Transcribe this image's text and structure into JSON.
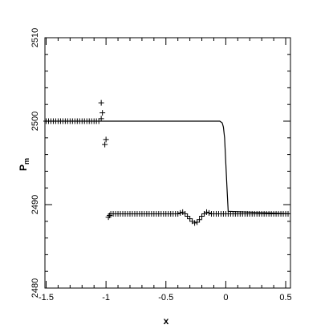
{
  "chart_data": {
    "type": "scatter",
    "xlabel": "x",
    "ylabel": "P",
    "ylabel_subscript": "m",
    "xlim": [
      -1.51,
      0.54
    ],
    "ylim": [
      2480,
      2510
    ],
    "xticks": [
      -1.5,
      -1,
      -0.5,
      0,
      0.5
    ],
    "yticks": [
      2480,
      2490,
      2500,
      2510
    ],
    "xminorticks": [
      -1.4,
      -1.3,
      -1.2,
      -1.1,
      -0.9,
      -0.8,
      -0.7,
      -0.6,
      -0.4,
      -0.3,
      -0.2,
      -0.1,
      0.1,
      0.2,
      0.3,
      0.4
    ],
    "yminorticks": [
      2482,
      2484,
      2486,
      2488,
      2492,
      2494,
      2496,
      2498,
      2502,
      2504,
      2506,
      2508
    ],
    "series": [
      {
        "style": "plus",
        "color": "#000000",
        "x": [
          -1.5,
          -1.48,
          -1.46,
          -1.44,
          -1.42,
          -1.4,
          -1.38,
          -1.36,
          -1.34,
          -1.32,
          -1.3,
          -1.28,
          -1.26,
          -1.24,
          -1.22,
          -1.2,
          -1.18,
          -1.16,
          -1.14,
          -1.12,
          -1.1,
          -1.08,
          -1.06,
          -1.04,
          -1.03,
          -1.04,
          -1.0,
          -1.01,
          -0.98,
          -0.97,
          -0.96,
          -0.94,
          -0.92,
          -0.9,
          -0.88,
          -0.86,
          -0.84,
          -0.82,
          -0.8,
          -0.78,
          -0.76,
          -0.74,
          -0.72,
          -0.7,
          -0.68,
          -0.66,
          -0.64,
          -0.62,
          -0.6,
          -0.58,
          -0.56,
          -0.54,
          -0.52,
          -0.5,
          -0.48,
          -0.46,
          -0.44,
          -0.42,
          -0.4,
          -0.38,
          -0.36,
          -0.34,
          -0.32,
          -0.3,
          -0.28,
          -0.26,
          -0.24,
          -0.22,
          -0.2,
          -0.18,
          -0.16,
          -0.14,
          -0.12,
          -0.1,
          -0.08,
          -0.06,
          -0.04,
          -0.02,
          0,
          0.02,
          0.04,
          0.06,
          0.08,
          0.1,
          0.12,
          0.14,
          0.16,
          0.18,
          0.2,
          0.22,
          0.24,
          0.26,
          0.28,
          0.3,
          0.32,
          0.34,
          0.36,
          0.38,
          0.4,
          0.42,
          0.44,
          0.46,
          0.48,
          0.5,
          0.52
        ],
        "values": [
          2500,
          2500,
          2500,
          2500,
          2500,
          2500,
          2500,
          2500,
          2500,
          2500,
          2500,
          2500,
          2500,
          2500,
          2500,
          2500,
          2500,
          2500,
          2500,
          2500,
          2500,
          2500,
          2500,
          2502.2,
          2501,
          2500.3,
          2497.8,
          2497.2,
          2488.5,
          2488.7,
          2488.9,
          2488.9,
          2488.9,
          2488.9,
          2488.9,
          2488.9,
          2488.9,
          2488.9,
          2488.9,
          2488.9,
          2488.9,
          2488.9,
          2488.9,
          2488.9,
          2488.9,
          2488.9,
          2488.9,
          2488.9,
          2488.9,
          2488.9,
          2488.9,
          2488.9,
          2488.9,
          2488.9,
          2488.9,
          2488.9,
          2488.9,
          2488.9,
          2488.9,
          2489,
          2489.1,
          2488.9,
          2488.6,
          2488.3,
          2488,
          2487.8,
          2487.9,
          2488.2,
          2488.6,
          2488.9,
          2489.1,
          2489,
          2488.9,
          2488.9,
          2488.9,
          2488.9,
          2488.9,
          2488.9,
          2488.9,
          2488.9,
          2488.9,
          2488.9,
          2488.9,
          2488.9,
          2488.9,
          2488.9,
          2488.9,
          2488.9,
          2488.9,
          2488.9,
          2488.9,
          2488.9,
          2488.9,
          2488.9,
          2488.9,
          2488.9,
          2488.9,
          2488.9,
          2488.9,
          2488.9,
          2488.9,
          2488.9,
          2488.9,
          2488.9,
          2488.9
        ]
      },
      {
        "style": "line",
        "color": "#000000",
        "x": [
          -1.51,
          -0.05,
          -0.03,
          -0.02,
          -0.01,
          0,
          0.01,
          0.02,
          0.54
        ],
        "values": [
          2500,
          2500,
          2499.8,
          2499.3,
          2498,
          2495,
          2492,
          2489.2,
          2488.9
        ]
      }
    ]
  }
}
